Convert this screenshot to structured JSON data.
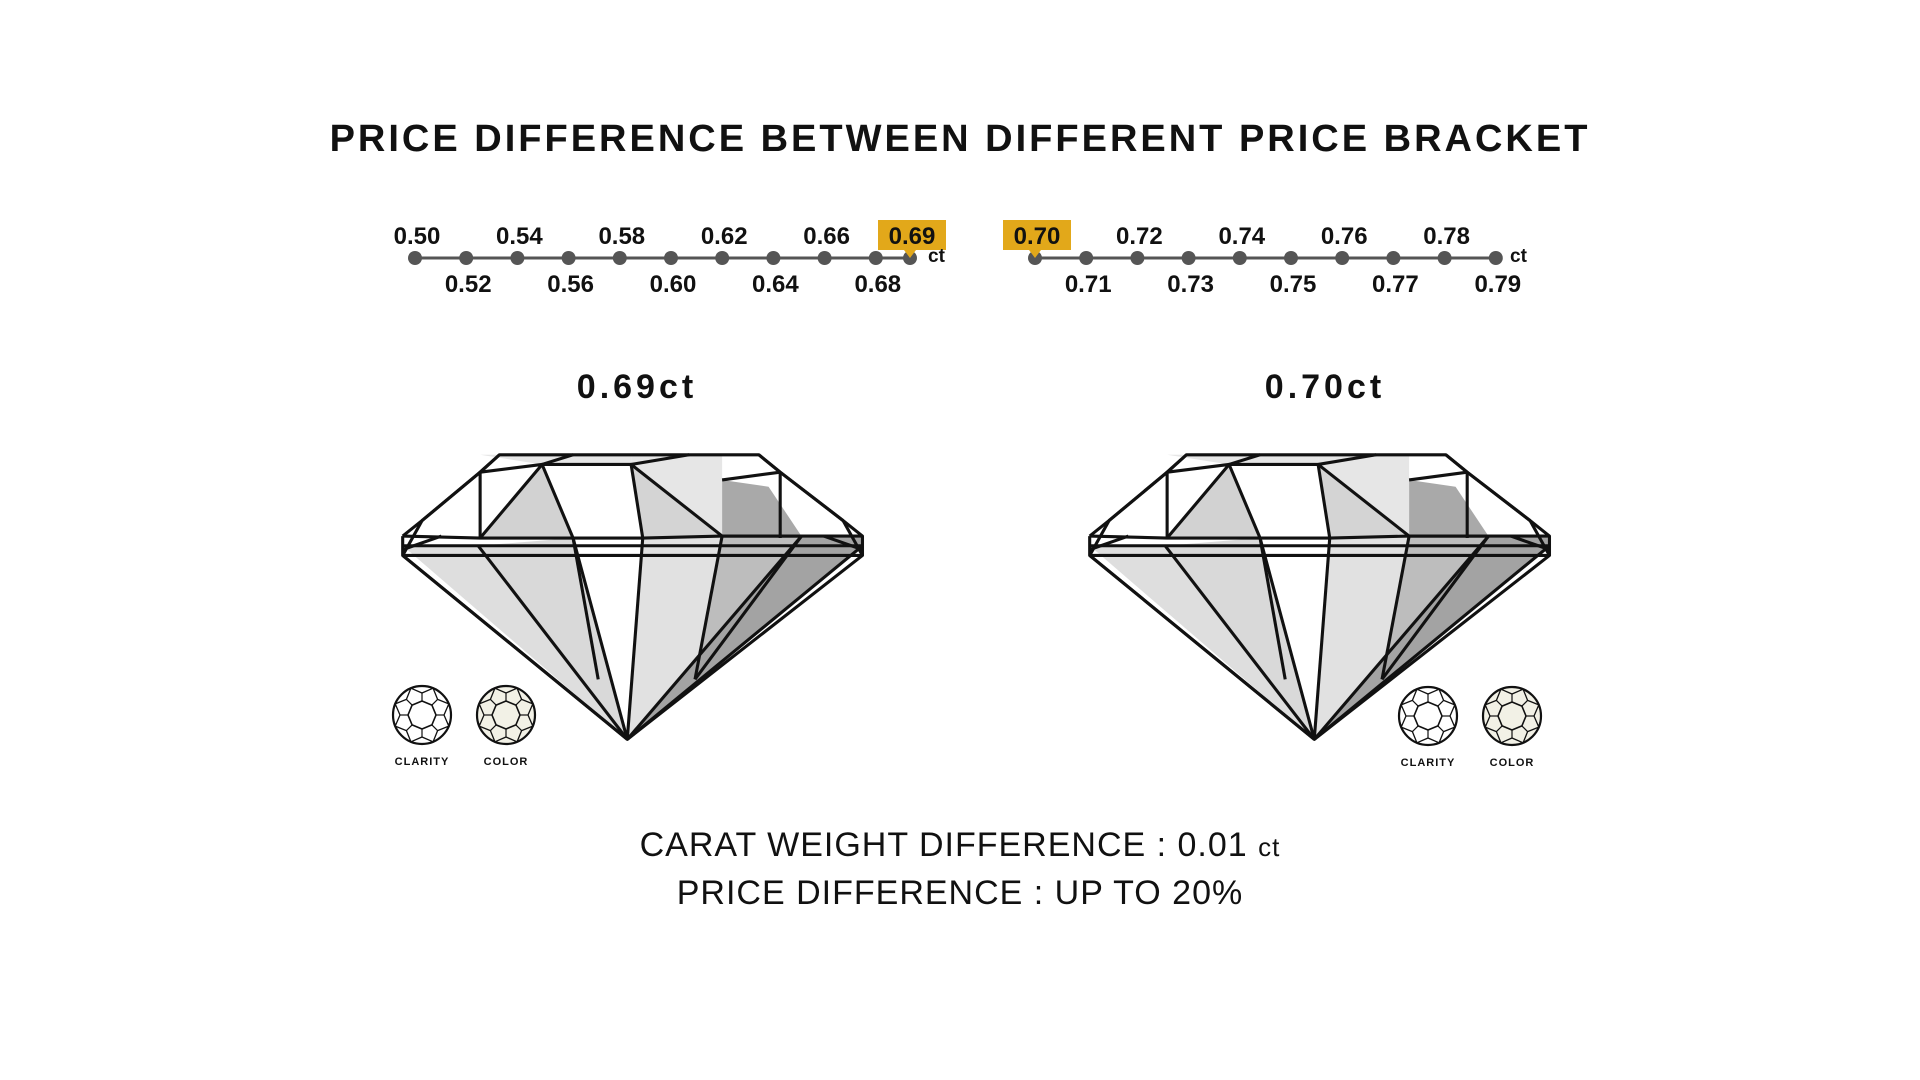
{
  "title": "PRICE DIFFERENCE BETWEEN DIFFERENT PRICE BRACKET",
  "scale_left": {
    "unit": "ct",
    "highlight": "0.69",
    "top_labels": [
      "0.50",
      "0.54",
      "0.58",
      "0.62",
      "0.66",
      "0.69"
    ],
    "bottom_labels": [
      "0.52",
      "0.56",
      "0.60",
      "0.64",
      "0.68"
    ]
  },
  "scale_right": {
    "unit": "ct",
    "highlight": "0.70",
    "top_labels": [
      "0.70",
      "0.72",
      "0.74",
      "0.76",
      "0.78"
    ],
    "bottom_labels": [
      "0.71",
      "0.73",
      "0.75",
      "0.77",
      "0.79"
    ]
  },
  "diamond_left": {
    "label": "0.69ct"
  },
  "diamond_right": {
    "label": "0.70ct"
  },
  "badges": {
    "clarity": "CLARITY",
    "color": "COLOR"
  },
  "summary": {
    "line1_text": "CARAT WEIGHT DIFFERENCE : 0.01",
    "line1_unit": "ct",
    "line2": "PRICE DIFFERENCE : UP TO 20%"
  },
  "colors": {
    "highlight": "#E2A81A",
    "dot": "#555555",
    "outline": "#111111"
  }
}
